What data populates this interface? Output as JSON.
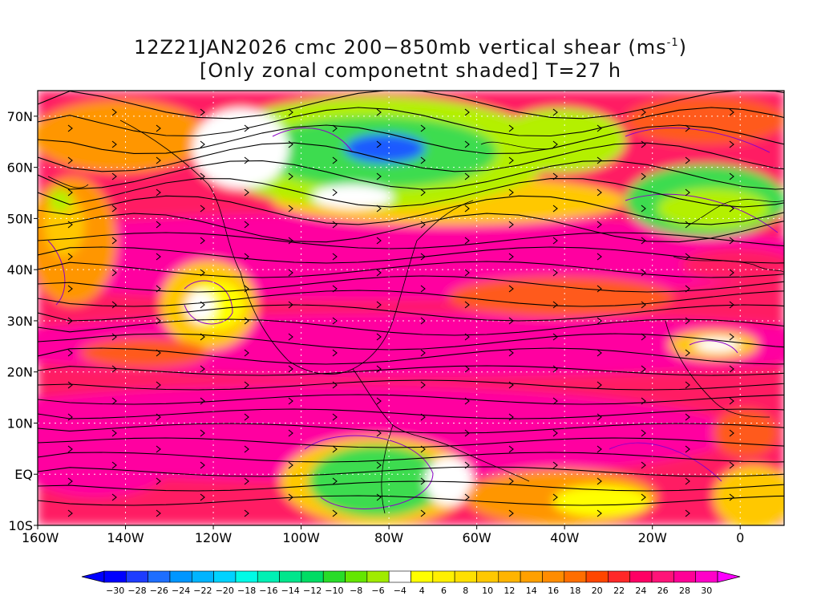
{
  "title": {
    "line1_prefix": "12Z21JAN2026 cmc 200−850mb vertical shear (ms",
    "line1_sup": "-1",
    "line1_suffix": ")",
    "line2": "[Only zonal componetnt shaded] T=27 h"
  },
  "axes": {
    "lat_labels": [
      "70N",
      "60N",
      "50N",
      "40N",
      "30N",
      "20N",
      "10N",
      "EQ",
      "10S"
    ],
    "lon_labels": [
      "160W",
      "140W",
      "120W",
      "100W",
      "80W",
      "60W",
      "40W",
      "20W",
      "0"
    ]
  },
  "colorbar": {
    "labels": [
      "-30",
      "-28",
      "-26",
      "-24",
      "-22",
      "-20",
      "-18",
      "-16",
      "-14",
      "-12",
      "-10",
      "-8",
      "-6",
      "-4",
      "4",
      "6",
      "8",
      "10",
      "12",
      "14",
      "16",
      "18",
      "20",
      "22",
      "24",
      "26",
      "28",
      "30"
    ],
    "colors": [
      "#0000ff",
      "#1e3cff",
      "#1e6eff",
      "#0096ff",
      "#00b4ff",
      "#00d2ff",
      "#00fae6",
      "#00f0b4",
      "#00e68c",
      "#00dc64",
      "#28dc28",
      "#64e600",
      "#a0eb00",
      "#ffffff",
      "#ffff00",
      "#fff000",
      "#ffe000",
      "#ffc800",
      "#ffb400",
      "#ffa000",
      "#ff8c00",
      "#ff6e00",
      "#ff4600",
      "#ff2828",
      "#ff0064",
      "#ff1478",
      "#ff0096",
      "#ff00c8"
    ],
    "over_color": "#ff00ff",
    "under_color": "#0000ff"
  },
  "field_colors": {
    "strong": "#ff00a0",
    "high": "#ff1e64",
    "midhigh": "#ff5a1e",
    "mid": "#ff9600",
    "low": "#ffc800",
    "weak": "#ffff00",
    "calm": "#ffffff",
    "neg_weak": "#b4f000",
    "neg_mid": "#3cdc50",
    "neg_strong": "#00c8c8",
    "neg_max": "#1e5aff",
    "contour": "#8c00c8",
    "stream": "#000000",
    "coast": "#000000",
    "grid": "#ffffff"
  }
}
